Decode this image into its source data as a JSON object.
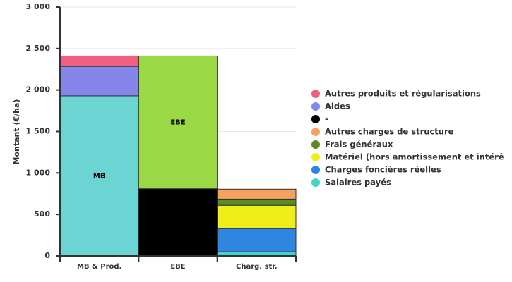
{
  "chart_data": {
    "type": "stacked_bar",
    "y_label": "Montant (€/ha)",
    "categories": [
      "MB & Prod.",
      "EBE",
      "Charg. str."
    ],
    "ylim": [
      0,
      3000
    ],
    "yticks": [
      0,
      500,
      {
        "value": 1000,
        "label": "1 000"
      },
      {
        "value": 1500,
        "label": "1 500"
      },
      {
        "value": 2000,
        "label": "2 000"
      },
      {
        "value": 2500,
        "label": "2 500"
      },
      {
        "value": 3000,
        "label": "3 000"
      }
    ],
    "grid": true,
    "series": [
      {
        "label": "MB",
        "color": "#6dd4d4",
        "values": [
          1930,
          null,
          null
        ]
      },
      {
        "name": "Salaires payés",
        "color": "#3fd5c8",
        "values": [
          null,
          null,
          50
        ]
      },
      {
        "name": "Charges foncières réelles",
        "color": "#2f86e0",
        "values": [
          null,
          null,
          280
        ]
      },
      {
        "name": "Matériel (hors amortissement et intérê",
        "color": "#eeee1a",
        "values": [
          null,
          null,
          280
        ]
      },
      {
        "name": "Frais généraux",
        "color": "#5b8c22",
        "values": [
          null,
          null,
          75
        ]
      },
      {
        "name": "Autres charges de structure",
        "color": "#f4a35e",
        "values": [
          null,
          null,
          120
        ]
      },
      {
        "name": "-",
        "color": "#000000",
        "values": [
          null,
          810,
          null
        ]
      },
      {
        "label": "EBE",
        "color": "#9bd846",
        "values": [
          null,
          1600,
          null
        ]
      },
      {
        "name": "Aides",
        "color": "#8585ea",
        "values": [
          355,
          null,
          null
        ]
      },
      {
        "name": "Autres produits et régularisations",
        "color": "#ef5f82",
        "values": [
          125,
          null,
          null
        ]
      }
    ]
  }
}
